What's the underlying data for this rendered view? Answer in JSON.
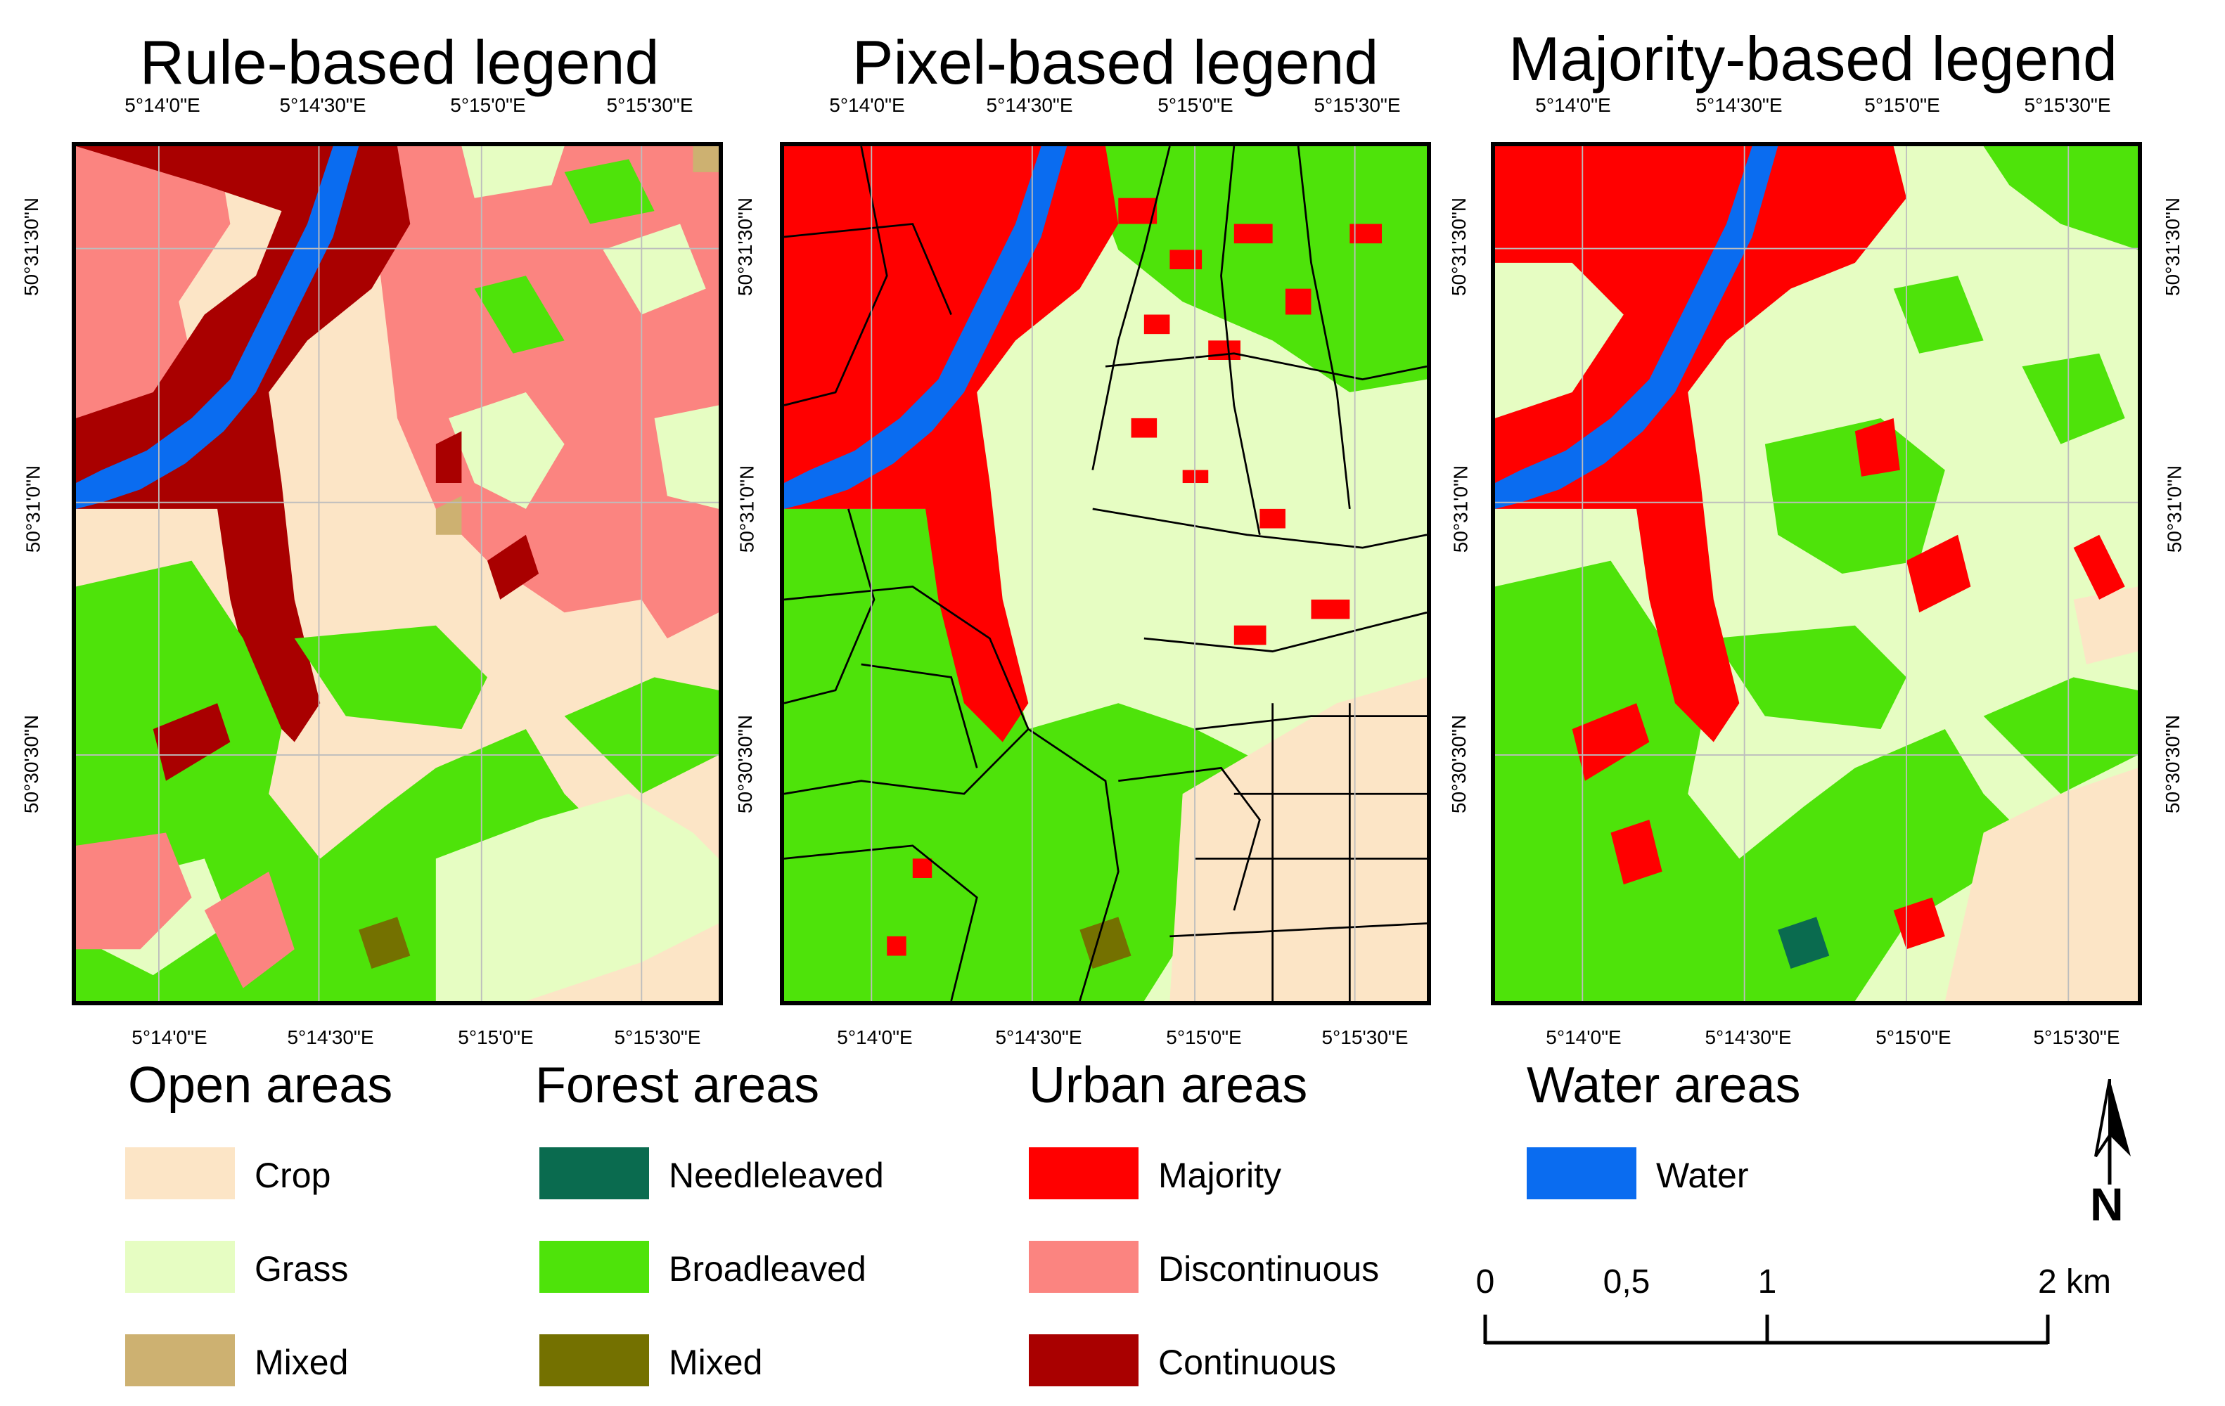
{
  "panels": [
    {
      "id": "rule",
      "title": "Rule-based legend"
    },
    {
      "id": "pixel",
      "title": "Pixel-based legend"
    },
    {
      "id": "majority",
      "title": "Majority-based legend"
    }
  ],
  "axes": {
    "lon_ticks": [
      "5°14'0\"E",
      "5°14'30\"E",
      "5°15'0\"E",
      "5°15'30\"E"
    ],
    "lat_ticks": [
      "50°31'30\"N",
      "50°31'0\"N",
      "50°30'30\"N"
    ]
  },
  "legend": {
    "groups": [
      {
        "heading": "Open areas",
        "items": [
          {
            "label": "Crop",
            "color": "#fce5c6"
          },
          {
            "label": "Grass",
            "color": "#e6fdc2"
          },
          {
            "label": "Mixed",
            "color": "#cdb171"
          }
        ]
      },
      {
        "heading": "Forest areas",
        "items": [
          {
            "label": "Needleleaved",
            "color": "#0a6b4f"
          },
          {
            "label": "Broadleaved",
            "color": "#4ee30a"
          },
          {
            "label": "Mixed",
            "color": "#747100"
          }
        ]
      },
      {
        "heading": "Urban areas",
        "items": [
          {
            "label": "Majority",
            "color": "#ff0000"
          },
          {
            "label": "Discontinuous",
            "color": "#fb8480"
          },
          {
            "label": "Continuous",
            "color": "#a90000"
          }
        ]
      },
      {
        "heading": "Water areas",
        "items": [
          {
            "label": "Water",
            "color": "#0a6cf0"
          }
        ]
      }
    ]
  },
  "scale_bar": {
    "labels": [
      "0",
      "0,5",
      "1",
      "2 km"
    ]
  },
  "north_arrow": {
    "label": "N"
  },
  "colors": {
    "crop": "#fce5c6",
    "grass": "#e6fdc2",
    "open_mixed": "#cdb171",
    "needleleaved": "#0a6b4f",
    "broadleaved": "#4ee30a",
    "forest_mixed": "#747100",
    "urban_majority": "#ff0000",
    "urban_discontinuous": "#fb8480",
    "urban_continuous": "#a90000",
    "water": "#0a6cf0"
  }
}
